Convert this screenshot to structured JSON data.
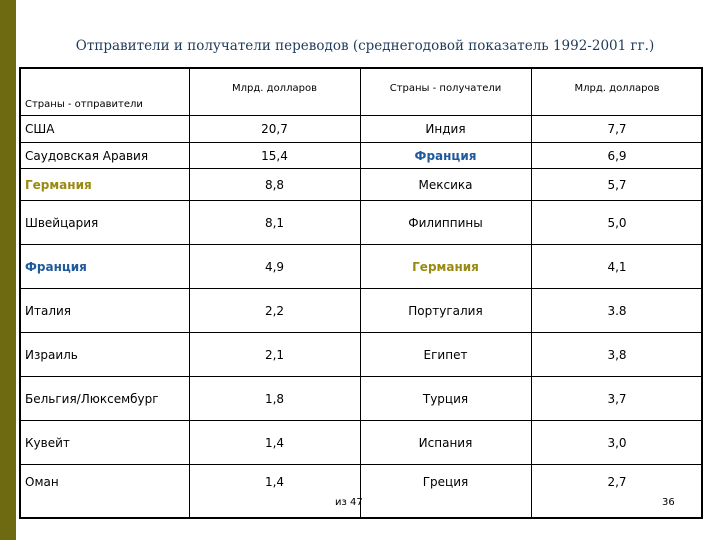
{
  "title": "Отправители и получатели переводов (среднегодовой показатель 1992-2001 гг.)",
  "table": {
    "headers": [
      "Страны - отправители",
      "Млрд. долларов",
      "Страны - получатели",
      "Млрд. долларов"
    ],
    "rows": [
      {
        "sender": "США",
        "sender_value": "20,7",
        "receiver": "Индия",
        "receiver_value": "7,7"
      },
      {
        "sender": "Саудовская Аравия",
        "sender_value": "15,4",
        "receiver": "Франция",
        "receiver_value": "6,9"
      },
      {
        "sender": "Германия",
        "sender_value": "8,8",
        "receiver": "Мексика",
        "receiver_value": "5,7"
      },
      {
        "sender": "Швейцария",
        "sender_value": "8,1",
        "receiver": "Филиппины",
        "receiver_value": "5,0"
      },
      {
        "sender": "Франция",
        "sender_value": "4,9",
        "receiver": "Германия",
        "receiver_value": "4,1"
      },
      {
        "sender": "Италия",
        "sender_value": "2,2",
        "receiver": "Португалия",
        "receiver_value": "3.8"
      },
      {
        "sender": "Израиль",
        "sender_value": "2,1",
        "receiver": "Египет",
        "receiver_value": "3,8"
      },
      {
        "sender": "Бельгия/Люксембург",
        "sender_value": "1,8",
        "receiver": "Турция",
        "receiver_value": "3,7"
      },
      {
        "sender": "Кувейт",
        "sender_value": "1,4",
        "receiver": "Испания",
        "receiver_value": "3,0"
      },
      {
        "sender": "Оман",
        "sender_value": "1,4",
        "receiver": "Греция",
        "receiver_value": "2,7"
      }
    ]
  },
  "footer": {
    "pages": "из 47",
    "page_number": "36"
  },
  "colors": {
    "france": "#1f5a9c",
    "germany": "#9a8a10",
    "left_bar": "#6e6a12"
  }
}
